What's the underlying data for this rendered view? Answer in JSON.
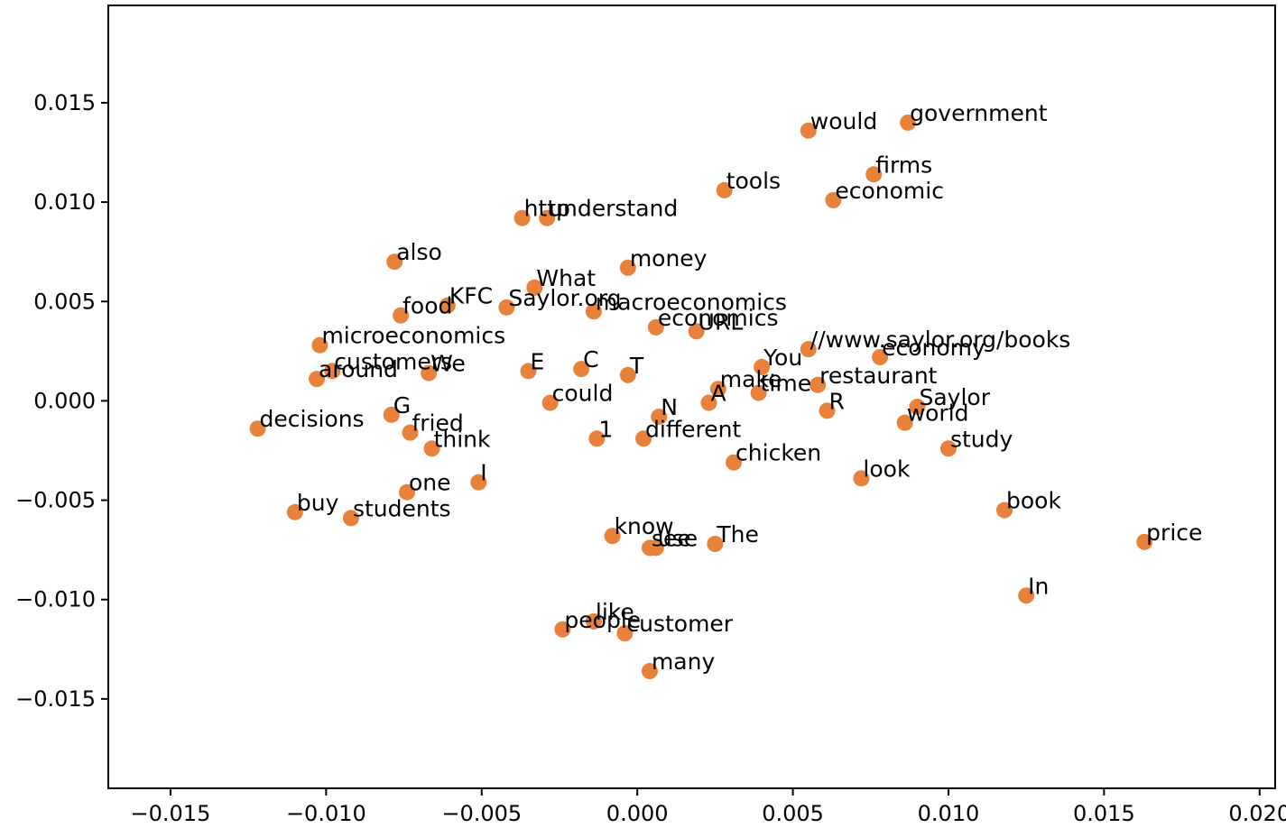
{
  "chart_data": {
    "type": "scatter",
    "title": "",
    "xlabel": "",
    "ylabel": "",
    "xlim": [
      -0.017,
      0.0205
    ],
    "ylim": [
      -0.0195,
      0.0199
    ],
    "x_ticks": [
      -0.015,
      -0.01,
      -0.005,
      0.0,
      0.005,
      0.01,
      0.015,
      0.02
    ],
    "x_tick_labels": [
      "−0.015",
      "−0.010",
      "−0.005",
      "0.000",
      "0.005",
      "0.010",
      "0.015",
      "0.020"
    ],
    "y_ticks": [
      0.015,
      0.01,
      0.005,
      0.0,
      -0.005,
      -0.01,
      -0.015
    ],
    "y_tick_labels": [
      "0.015",
      "0.010",
      "0.005",
      "0.000",
      "−0.005",
      "−0.010",
      "−0.015"
    ],
    "grid": false,
    "marker_color": "#e8823a",
    "points": [
      {
        "label": "would",
        "x": 0.0055,
        "y": 0.0136
      },
      {
        "label": "government",
        "x": 0.0087,
        "y": 0.014
      },
      {
        "label": "firms",
        "x": 0.0076,
        "y": 0.0114
      },
      {
        "label": "tools",
        "x": 0.0028,
        "y": 0.0106
      },
      {
        "label": "economic",
        "x": 0.0063,
        "y": 0.0101
      },
      {
        "label": "http",
        "x": -0.0037,
        "y": 0.0092
      },
      {
        "label": "understand",
        "x": -0.0029,
        "y": 0.0092
      },
      {
        "label": "also",
        "x": -0.0078,
        "y": 0.007
      },
      {
        "label": "money",
        "x": -0.0003,
        "y": 0.0067
      },
      {
        "label": "What",
        "x": -0.0033,
        "y": 0.0057
      },
      {
        "label": "KFC",
        "x": -0.0061,
        "y": 0.0048
      },
      {
        "label": "Saylor.org",
        "x": -0.0042,
        "y": 0.0047
      },
      {
        "label": "food",
        "x": -0.0076,
        "y": 0.0043
      },
      {
        "label": "macroeconomics",
        "x": -0.0014,
        "y": 0.0045
      },
      {
        "label": "economics",
        "x": 0.0006,
        "y": 0.0037
      },
      {
        "label": "URL",
        "x": 0.0019,
        "y": 0.0035
      },
      {
        "label": "microeconomics",
        "x": -0.0102,
        "y": 0.0028
      },
      {
        "label": "//www.saylor.org/books",
        "x": 0.0055,
        "y": 0.0026
      },
      {
        "label": "economy",
        "x": 0.0078,
        "y": 0.0022
      },
      {
        "label": "customers",
        "x": -0.0098,
        "y": 0.0015
      },
      {
        "label": "around",
        "x": -0.0103,
        "y": 0.0011
      },
      {
        "label": "We",
        "x": -0.0067,
        "y": 0.0014
      },
      {
        "label": "E",
        "x": -0.0035,
        "y": 0.0015
      },
      {
        "label": "C",
        "x": -0.0018,
        "y": 0.0016
      },
      {
        "label": "T",
        "x": -0.0003,
        "y": 0.0013
      },
      {
        "label": "You",
        "x": 0.004,
        "y": 0.0017
      },
      {
        "label": "make",
        "x": 0.0026,
        "y": 0.0006
      },
      {
        "label": "time",
        "x": 0.0039,
        "y": 0.0004
      },
      {
        "label": "restaurant",
        "x": 0.0058,
        "y": 0.0008
      },
      {
        "label": "could",
        "x": -0.0028,
        "y": -0.0001
      },
      {
        "label": "A",
        "x": 0.0023,
        "y": -0.0001
      },
      {
        "label": "R",
        "x": 0.0061,
        "y": -0.0005
      },
      {
        "label": "Saylor",
        "x": 0.009,
        "y": -0.0003
      },
      {
        "label": "N",
        "x": 0.0007,
        "y": -0.0008
      },
      {
        "label": "world",
        "x": 0.0086,
        "y": -0.0011
      },
      {
        "label": "G",
        "x": -0.0079,
        "y": -0.0007
      },
      {
        "label": "decisions",
        "x": -0.0122,
        "y": -0.0014
      },
      {
        "label": "fried",
        "x": -0.0073,
        "y": -0.0016
      },
      {
        "label": "1",
        "x": -0.0013,
        "y": -0.0019
      },
      {
        "label": "different",
        "x": 0.0002,
        "y": -0.0019
      },
      {
        "label": "think",
        "x": -0.0066,
        "y": -0.0024
      },
      {
        "label": "study",
        "x": 0.01,
        "y": -0.0024
      },
      {
        "label": "chicken",
        "x": 0.0031,
        "y": -0.0031
      },
      {
        "label": "look",
        "x": 0.0072,
        "y": -0.0039
      },
      {
        "label": "I",
        "x": -0.0051,
        "y": -0.0041
      },
      {
        "label": "one",
        "x": -0.0074,
        "y": -0.0046
      },
      {
        "label": "buy",
        "x": -0.011,
        "y": -0.0056
      },
      {
        "label": "book",
        "x": 0.0118,
        "y": -0.0055
      },
      {
        "label": "students",
        "x": -0.0092,
        "y": -0.0059
      },
      {
        "label": "know",
        "x": -0.0008,
        "y": -0.0068
      },
      {
        "label": "see",
        "x": 0.0004,
        "y": -0.0074
      },
      {
        "label": "use",
        "x": 0.0006,
        "y": -0.0074
      },
      {
        "label": "The",
        "x": 0.0025,
        "y": -0.0072
      },
      {
        "label": "price",
        "x": 0.0163,
        "y": -0.0071
      },
      {
        "label": "In",
        "x": 0.0125,
        "y": -0.0098
      },
      {
        "label": "like",
        "x": -0.0014,
        "y": -0.0111
      },
      {
        "label": "people",
        "x": -0.0024,
        "y": -0.0115
      },
      {
        "label": "customer",
        "x": -0.0004,
        "y": -0.0117
      },
      {
        "label": "many",
        "x": 0.0004,
        "y": -0.0136
      }
    ]
  }
}
